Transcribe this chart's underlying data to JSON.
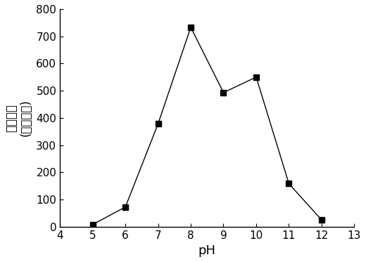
{
  "x": [
    5,
    6,
    7,
    8,
    9,
    10,
    11,
    12
  ],
  "y": [
    8,
    72,
    378,
    733,
    493,
    550,
    158,
    25
  ],
  "xlim": [
    4,
    13
  ],
  "ylim": [
    0,
    800
  ],
  "xticks": [
    4,
    5,
    6,
    7,
    8,
    9,
    10,
    11,
    12,
    13
  ],
  "yticks": [
    0,
    100,
    200,
    300,
    400,
    500,
    600,
    700,
    800
  ],
  "xlabel": "pH",
  "ylabel_cn": "荧光强度",
  "ylabel_en": "(ａ．ｕ．)",
  "line_color": "#000000",
  "marker": "s",
  "marker_size": 6,
  "marker_color": "#000000",
  "line_width": 1.0,
  "fig_width": 5.2,
  "fig_height": 3.73,
  "dpi": 100,
  "tick_fontsize": 11,
  "xlabel_fontsize": 13,
  "ylabel_fontsize": 12
}
